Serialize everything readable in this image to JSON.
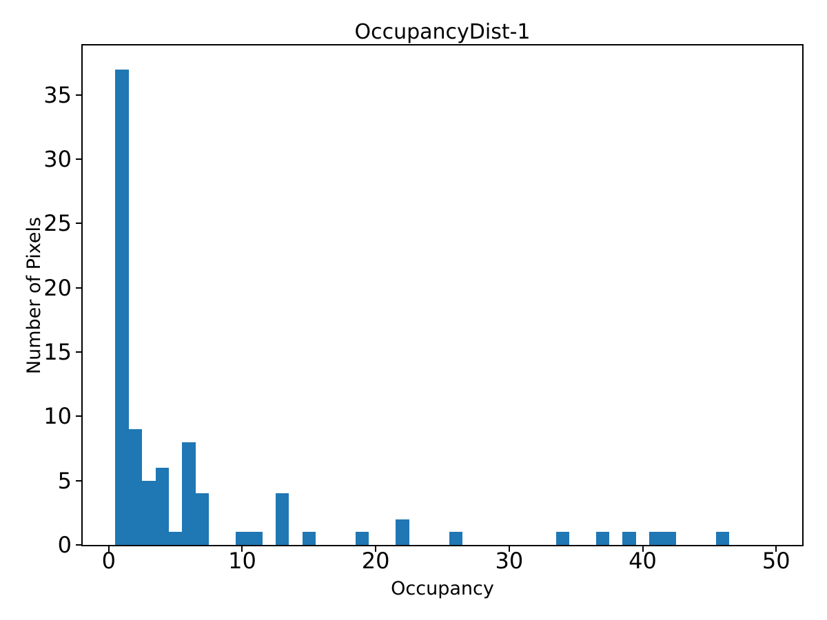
{
  "figure": {
    "background_color": "#ffffff",
    "text_color": "#000000",
    "spine_color": "#000000"
  },
  "chart_data": {
    "type": "bar",
    "subtype": "histogram",
    "title": "OccupancyDist-1",
    "xlabel": "Occupancy",
    "ylabel": "Number of Pixels",
    "bar_color": "#1f77b4",
    "grid": false,
    "legend": null,
    "bin_start": 0.5,
    "bin_width": 1,
    "occupancy_start": 1,
    "counts": [
      37,
      9,
      5,
      6,
      1,
      8,
      4,
      0,
      0,
      1,
      1,
      0,
      4,
      0,
      1,
      0,
      0,
      0,
      1,
      0,
      0,
      2,
      0,
      0,
      0,
      1,
      0,
      0,
      0,
      0,
      0,
      0,
      0,
      1,
      0,
      0,
      1,
      0,
      1,
      0,
      1,
      1,
      0,
      0,
      0,
      1,
      0,
      0,
      0
    ],
    "nonzero_bins": [
      {
        "occupancy": 1,
        "count": 37
      },
      {
        "occupancy": 2,
        "count": 9
      },
      {
        "occupancy": 3,
        "count": 5
      },
      {
        "occupancy": 4,
        "count": 6
      },
      {
        "occupancy": 5,
        "count": 1
      },
      {
        "occupancy": 6,
        "count": 8
      },
      {
        "occupancy": 7,
        "count": 4
      },
      {
        "occupancy": 10,
        "count": 1
      },
      {
        "occupancy": 11,
        "count": 1
      },
      {
        "occupancy": 13,
        "count": 4
      },
      {
        "occupancy": 15,
        "count": 1
      },
      {
        "occupancy": 19,
        "count": 1
      },
      {
        "occupancy": 22,
        "count": 2
      },
      {
        "occupancy": 26,
        "count": 1
      },
      {
        "occupancy": 34,
        "count": 1
      },
      {
        "occupancy": 37,
        "count": 1
      },
      {
        "occupancy": 39,
        "count": 1
      },
      {
        "occupancy": 41,
        "count": 1
      },
      {
        "occupancy": 42,
        "count": 1
      },
      {
        "occupancy": 46,
        "count": 1
      }
    ],
    "xlim": [
      -1.95,
      51.95
    ],
    "ylim": [
      0,
      38.85
    ],
    "xticks": [
      0,
      10,
      20,
      30,
      40,
      50
    ],
    "yticks": [
      0,
      5,
      10,
      15,
      20,
      25,
      30,
      35
    ]
  }
}
